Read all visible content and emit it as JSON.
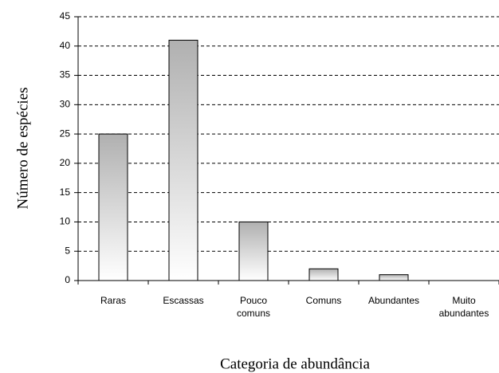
{
  "chart_data": {
    "type": "bar",
    "x_label": "Categoria de abundância",
    "y_label": "Número de espécies",
    "categories": [
      "Raras",
      "Escassas",
      "Pouco comuns",
      "Comuns",
      "Abundantes",
      "Muito abundantes"
    ],
    "values": [
      25,
      41,
      10,
      2,
      1,
      0
    ],
    "color": "#b0b0b0",
    "ylim": [
      0,
      45
    ],
    "yticks": [
      0,
      5,
      10,
      15,
      20,
      25,
      30,
      35,
      40,
      45
    ],
    "grid": true
  }
}
